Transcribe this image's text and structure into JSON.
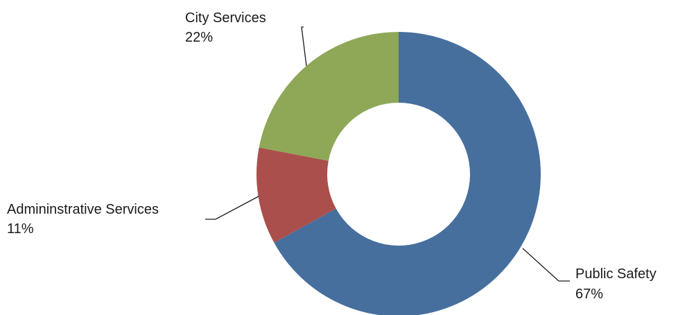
{
  "chart_data": {
    "type": "pie",
    "style": "donut",
    "slices": [
      {
        "name": "Public Safety",
        "value": 67,
        "label": "67%",
        "color": "#466f9e"
      },
      {
        "name": "Admininstrative Services",
        "value": 11,
        "label": "11%",
        "color": "#ab4f4c"
      },
      {
        "name": "City Services",
        "value": 22,
        "label": "22%",
        "color": "#8ea857"
      }
    ]
  }
}
